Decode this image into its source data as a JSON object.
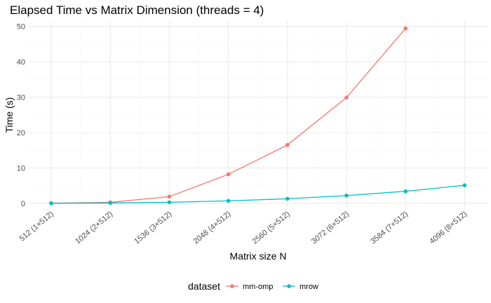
{
  "chart_data": {
    "type": "line",
    "title": "Elapsed Time vs Matrix Dimension (threads = 4)",
    "xlabel": "Matrix size N",
    "ylabel": "Time (s)",
    "categories": [
      "512 (1×512)",
      "1024 (2×512)",
      "1536 (3×512)",
      "2048 (4×512)",
      "2560 (5×512)",
      "3072 (6×512)",
      "3584 (7×512)",
      "4096 (8×512)"
    ],
    "ylim": [
      -1.2,
      51.5
    ],
    "yticks": [
      0,
      10,
      20,
      30,
      40,
      50
    ],
    "grid": true,
    "legend": {
      "title": "dataset",
      "position": "bottom"
    },
    "series": [
      {
        "name": "mm-omp",
        "color": "#F8766D",
        "values": [
          0.05,
          0.3,
          1.9,
          8.2,
          16.5,
          29.9,
          49.4,
          null
        ]
      },
      {
        "name": "mrow",
        "color": "#00BFC4",
        "values": [
          0.02,
          0.1,
          0.3,
          0.7,
          1.3,
          2.2,
          3.4,
          5.1
        ]
      }
    ]
  }
}
